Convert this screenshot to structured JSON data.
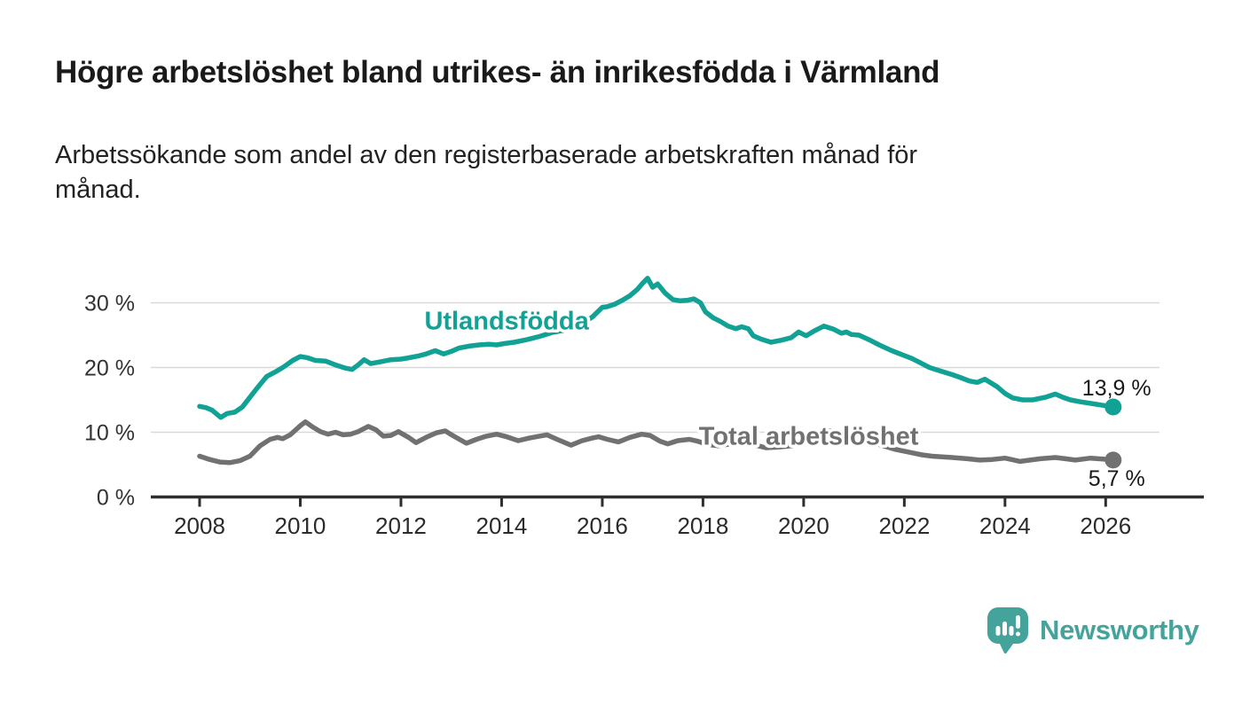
{
  "header": {
    "title": "Högre arbetslöshet bland utrikes- än inrikesfödda i Värmland",
    "subtitle_lines": [
      "Arbetssökande som andel av den registerbaserade arbetskraften månad för",
      "månad."
    ]
  },
  "colors": {
    "accent_teal": "#12a195",
    "line_gray": "#717171",
    "grid": "#d9d9d9",
    "axis": "#2e2e2e",
    "text_dark": "#1a1a1a",
    "logo_teal": "#44a39a"
  },
  "branding": {
    "logo_text": "Newsworthy",
    "logo_icon": "bar-chart-speech-bubble-icon"
  },
  "chart_data": {
    "type": "line",
    "title": "Högre arbetslöshet bland utrikes- än inrikesfödda i Värmland",
    "subtitle": "Arbetssökande som andel av den registerbaserade arbetskraften månad för månad.",
    "x_axis": {
      "ticks": [
        2008,
        2010,
        2012,
        2014,
        2016,
        2018,
        2020,
        2022,
        2024,
        2026
      ],
      "tick_labels": [
        "2008",
        "2010",
        "2012",
        "2014",
        "2016",
        "2018",
        "2020",
        "2022",
        "2024",
        "2026"
      ],
      "range": [
        2007.0,
        2027.9
      ],
      "unit": "year (monthly data)"
    },
    "y_axis": {
      "ticks": [
        0,
        10,
        20,
        30
      ],
      "tick_labels": [
        "0 %",
        "10 %",
        "20 %",
        "30 %"
      ],
      "range": [
        0,
        35
      ],
      "unit": "percent"
    },
    "grid": true,
    "legend_position": "inline-labels",
    "series": [
      {
        "id": "utlandsfodda",
        "name": "Utlandsfödda",
        "color": "#12a195",
        "end_label": "13,9 %",
        "end_value": 13.9,
        "label_pos": [
          2014.1,
          25.9
        ],
        "end_label_offset": [
          -35,
          -13
        ],
        "points": [
          [
            2008.0,
            14.0
          ],
          [
            2008.13,
            13.8
          ],
          [
            2008.25,
            13.4
          ],
          [
            2008.42,
            12.3
          ],
          [
            2008.55,
            12.9
          ],
          [
            2008.7,
            13.1
          ],
          [
            2008.85,
            13.9
          ],
          [
            2009.0,
            15.4
          ],
          [
            2009.15,
            16.9
          ],
          [
            2009.33,
            18.6
          ],
          [
            2009.5,
            19.3
          ],
          [
            2009.67,
            20.1
          ],
          [
            2009.85,
            21.1
          ],
          [
            2010.0,
            21.7
          ],
          [
            2010.15,
            21.5
          ],
          [
            2010.3,
            21.1
          ],
          [
            2010.5,
            21.0
          ],
          [
            2010.7,
            20.4
          ],
          [
            2010.9,
            19.9
          ],
          [
            2011.03,
            19.7
          ],
          [
            2011.15,
            20.4
          ],
          [
            2011.27,
            21.2
          ],
          [
            2011.4,
            20.6
          ],
          [
            2011.6,
            20.9
          ],
          [
            2011.8,
            21.2
          ],
          [
            2012.0,
            21.3
          ],
          [
            2012.15,
            21.5
          ],
          [
            2012.35,
            21.8
          ],
          [
            2012.5,
            22.1
          ],
          [
            2012.68,
            22.6
          ],
          [
            2012.85,
            22.1
          ],
          [
            2013.0,
            22.5
          ],
          [
            2013.15,
            23.0
          ],
          [
            2013.35,
            23.3
          ],
          [
            2013.55,
            23.5
          ],
          [
            2013.75,
            23.6
          ],
          [
            2013.9,
            23.5
          ],
          [
            2014.05,
            23.7
          ],
          [
            2014.25,
            23.9
          ],
          [
            2014.5,
            24.3
          ],
          [
            2014.75,
            24.8
          ],
          [
            2015.0,
            25.4
          ],
          [
            2015.2,
            25.7
          ],
          [
            2015.4,
            26.0
          ],
          [
            2015.6,
            26.8
          ],
          [
            2015.8,
            27.8
          ],
          [
            2016.0,
            29.3
          ],
          [
            2016.1,
            29.4
          ],
          [
            2016.25,
            29.8
          ],
          [
            2016.4,
            30.4
          ],
          [
            2016.55,
            31.1
          ],
          [
            2016.7,
            32.1
          ],
          [
            2016.8,
            33.0
          ],
          [
            2016.9,
            33.8
          ],
          [
            2017.0,
            32.4
          ],
          [
            2017.1,
            32.9
          ],
          [
            2017.25,
            31.5
          ],
          [
            2017.4,
            30.5
          ],
          [
            2017.55,
            30.3
          ],
          [
            2017.7,
            30.4
          ],
          [
            2017.82,
            30.6
          ],
          [
            2017.95,
            30.0
          ],
          [
            2018.05,
            28.6
          ],
          [
            2018.2,
            27.7
          ],
          [
            2018.35,
            27.1
          ],
          [
            2018.5,
            26.4
          ],
          [
            2018.65,
            26.0
          ],
          [
            2018.77,
            26.3
          ],
          [
            2018.9,
            26.0
          ],
          [
            2019.0,
            24.9
          ],
          [
            2019.15,
            24.4
          ],
          [
            2019.35,
            23.9
          ],
          [
            2019.55,
            24.2
          ],
          [
            2019.75,
            24.6
          ],
          [
            2019.9,
            25.5
          ],
          [
            2020.05,
            24.9
          ],
          [
            2020.2,
            25.6
          ],
          [
            2020.4,
            26.4
          ],
          [
            2020.6,
            25.9
          ],
          [
            2020.75,
            25.3
          ],
          [
            2020.85,
            25.5
          ],
          [
            2020.95,
            25.1
          ],
          [
            2021.1,
            25.0
          ],
          [
            2021.3,
            24.3
          ],
          [
            2021.5,
            23.5
          ],
          [
            2021.75,
            22.6
          ],
          [
            2021.95,
            22.0
          ],
          [
            2022.15,
            21.4
          ],
          [
            2022.35,
            20.6
          ],
          [
            2022.5,
            20.0
          ],
          [
            2022.7,
            19.5
          ],
          [
            2022.95,
            18.9
          ],
          [
            2023.1,
            18.5
          ],
          [
            2023.3,
            17.9
          ],
          [
            2023.45,
            17.7
          ],
          [
            2023.6,
            18.2
          ],
          [
            2023.85,
            17.0
          ],
          [
            2024.0,
            16.0
          ],
          [
            2024.15,
            15.3
          ],
          [
            2024.35,
            15.0
          ],
          [
            2024.55,
            15.0
          ],
          [
            2024.8,
            15.4
          ],
          [
            2025.0,
            15.9
          ],
          [
            2025.15,
            15.4
          ],
          [
            2025.3,
            15.0
          ],
          [
            2025.5,
            14.7
          ],
          [
            2025.75,
            14.4
          ],
          [
            2025.95,
            14.15
          ],
          [
            2026.15,
            13.9
          ]
        ]
      },
      {
        "id": "total",
        "name": "Total arbetslöshet",
        "color": "#717171",
        "end_label": "5,7 %",
        "end_value": 5.7,
        "label_pos": [
          2020.1,
          8.1
        ],
        "end_label_offset": [
          -28,
          29
        ],
        "points": [
          [
            2008.0,
            6.3
          ],
          [
            2008.2,
            5.8
          ],
          [
            2008.4,
            5.4
          ],
          [
            2008.6,
            5.3
          ],
          [
            2008.8,
            5.6
          ],
          [
            2009.0,
            6.3
          ],
          [
            2009.2,
            7.9
          ],
          [
            2009.4,
            8.9
          ],
          [
            2009.55,
            9.2
          ],
          [
            2009.65,
            9.0
          ],
          [
            2009.8,
            9.6
          ],
          [
            2010.0,
            11.0
          ],
          [
            2010.1,
            11.6
          ],
          [
            2010.25,
            10.8
          ],
          [
            2010.4,
            10.1
          ],
          [
            2010.55,
            9.7
          ],
          [
            2010.7,
            10.0
          ],
          [
            2010.85,
            9.6
          ],
          [
            2011.0,
            9.7
          ],
          [
            2011.15,
            10.1
          ],
          [
            2011.35,
            10.9
          ],
          [
            2011.5,
            10.4
          ],
          [
            2011.65,
            9.4
          ],
          [
            2011.8,
            9.5
          ],
          [
            2011.95,
            10.1
          ],
          [
            2012.15,
            9.2
          ],
          [
            2012.3,
            8.4
          ],
          [
            2012.5,
            9.2
          ],
          [
            2012.7,
            9.9
          ],
          [
            2012.88,
            10.2
          ],
          [
            2013.05,
            9.4
          ],
          [
            2013.3,
            8.3
          ],
          [
            2013.5,
            8.9
          ],
          [
            2013.7,
            9.4
          ],
          [
            2013.9,
            9.7
          ],
          [
            2014.1,
            9.3
          ],
          [
            2014.33,
            8.7
          ],
          [
            2014.55,
            9.1
          ],
          [
            2014.75,
            9.4
          ],
          [
            2014.9,
            9.6
          ],
          [
            2015.1,
            8.9
          ],
          [
            2015.38,
            8.0
          ],
          [
            2015.6,
            8.7
          ],
          [
            2015.8,
            9.1
          ],
          [
            2015.93,
            9.3
          ],
          [
            2016.1,
            8.9
          ],
          [
            2016.32,
            8.5
          ],
          [
            2016.55,
            9.2
          ],
          [
            2016.78,
            9.7
          ],
          [
            2016.95,
            9.5
          ],
          [
            2017.15,
            8.6
          ],
          [
            2017.3,
            8.2
          ],
          [
            2017.5,
            8.7
          ],
          [
            2017.73,
            8.9
          ],
          [
            2017.9,
            8.6
          ],
          [
            2018.1,
            8.1
          ],
          [
            2018.3,
            7.9
          ],
          [
            2018.55,
            8.2
          ],
          [
            2018.8,
            8.4
          ],
          [
            2019.0,
            8.1
          ],
          [
            2019.25,
            7.6
          ],
          [
            2019.5,
            7.7
          ],
          [
            2019.75,
            7.9
          ],
          [
            2019.95,
            8.3
          ],
          [
            2020.2,
            9.4
          ],
          [
            2020.45,
            10.3
          ],
          [
            2020.7,
            10.0
          ],
          [
            2020.95,
            9.5
          ],
          [
            2021.2,
            8.9
          ],
          [
            2021.5,
            8.1
          ],
          [
            2021.8,
            7.4
          ],
          [
            2022.1,
            6.9
          ],
          [
            2022.35,
            6.5
          ],
          [
            2022.55,
            6.3
          ],
          [
            2022.95,
            6.1
          ],
          [
            2023.25,
            5.9
          ],
          [
            2023.5,
            5.7
          ],
          [
            2023.75,
            5.8
          ],
          [
            2024.0,
            6.0
          ],
          [
            2024.3,
            5.5
          ],
          [
            2024.5,
            5.7
          ],
          [
            2024.7,
            5.9
          ],
          [
            2025.0,
            6.1
          ],
          [
            2025.2,
            5.9
          ],
          [
            2025.4,
            5.7
          ],
          [
            2025.7,
            6.0
          ],
          [
            2025.95,
            5.85
          ],
          [
            2026.15,
            5.7
          ]
        ]
      }
    ]
  }
}
